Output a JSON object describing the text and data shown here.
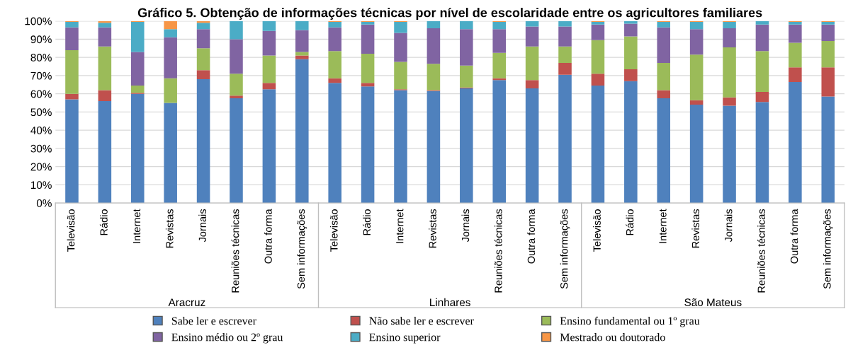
{
  "chart_data": {
    "type": "bar",
    "stacked": true,
    "title": "Gráfico 5. Obtenção de informações técnicas por nível de escolaridade entre os agricultores familiares",
    "categories": [
      "Televisão",
      "Rádio",
      "Internet",
      "Revistas",
      "Jornais",
      "Reuniões técnicas",
      "Outra forma",
      "Sem informações",
      "Televisão",
      "Rádio",
      "Internet",
      "Revistas",
      "Jornais",
      "Reuniões técnicas",
      "Outra forma",
      "Sem informações",
      "Televisão",
      "Rádio",
      "Internet",
      "Revistas",
      "Jornais",
      "Reuniões técnicas",
      "Outra forma",
      "Sem informações"
    ],
    "annotations": [
      "Aracruz",
      "Linhares",
      "São Mateus"
    ],
    "series": [
      {
        "name": "Sabe ler e escrever",
        "color": "#4f81bd",
        "values": [
          57,
          56,
          60,
          55,
          68,
          57.5,
          62.5,
          79,
          66,
          64,
          62,
          61.5,
          63,
          67.5,
          63,
          70.5,
          64.5,
          67,
          57.5,
          54,
          53.5,
          55.5,
          66.5,
          58.5
        ]
      },
      {
        "name": "Não sabe ler e escrever",
        "color": "#c0504d",
        "values": [
          3,
          6,
          0.5,
          0,
          5,
          1.5,
          3.5,
          2,
          2.5,
          2,
          0.5,
          0.5,
          0.5,
          1,
          4.5,
          6.5,
          6.5,
          6.5,
          4.5,
          2.5,
          4.5,
          5.5,
          8,
          16
        ]
      },
      {
        "name": "Ensino fundamental ou 1º grau",
        "color": "#9bbb59",
        "values": [
          24,
          24,
          4,
          13.5,
          12,
          12,
          15,
          2,
          15,
          16,
          15,
          14.5,
          12,
          14,
          18.5,
          9,
          18.5,
          18,
          15,
          25,
          27.5,
          22.5,
          13.5,
          14.5
        ]
      },
      {
        "name": "Ensino médio ou 2º grau",
        "color": "#8064a2",
        "values": [
          12.5,
          10.5,
          18.5,
          22.5,
          10.5,
          19,
          13.5,
          12,
          13,
          16,
          16,
          19.5,
          20,
          13,
          11,
          11,
          8.5,
          7,
          19.5,
          14,
          10.5,
          14.5,
          10,
          9
        ]
      },
      {
        "name": "Ensino superior",
        "color": "#4bacc6",
        "values": [
          3,
          2.5,
          16.5,
          4.5,
          3.5,
          10,
          5.5,
          5,
          3,
          1.5,
          6,
          4,
          4.5,
          4,
          3,
          3,
          1.5,
          1.5,
          3,
          4,
          3.5,
          2,
          1.5,
          1.5
        ]
      },
      {
        "name": "Mestrado ou doutorado",
        "color": "#f79646",
        "values": [
          0.5,
          1,
          0.5,
          4.5,
          1,
          0,
          0,
          0,
          0.5,
          0.5,
          0.5,
          0,
          0,
          0.5,
          0,
          0,
          0.5,
          0,
          0.5,
          0.5,
          0.5,
          0,
          0.5,
          0.5
        ]
      }
    ],
    "ylim": [
      0,
      100
    ],
    "yticks": [
      {
        "value": 0,
        "label": "0%"
      },
      {
        "value": 10,
        "label": "10%"
      },
      {
        "value": 20,
        "label": "20%"
      },
      {
        "value": 30,
        "label": "30%"
      },
      {
        "value": 40,
        "label": "40%"
      },
      {
        "value": 50,
        "label": "50%"
      },
      {
        "value": 60,
        "label": "60%"
      },
      {
        "value": 70,
        "label": "70%"
      },
      {
        "value": 80,
        "label": "80%"
      },
      {
        "value": 90,
        "label": "90%"
      },
      {
        "value": 100,
        "label": "100%"
      }
    ],
    "grid": "y",
    "legend": "bottom"
  }
}
